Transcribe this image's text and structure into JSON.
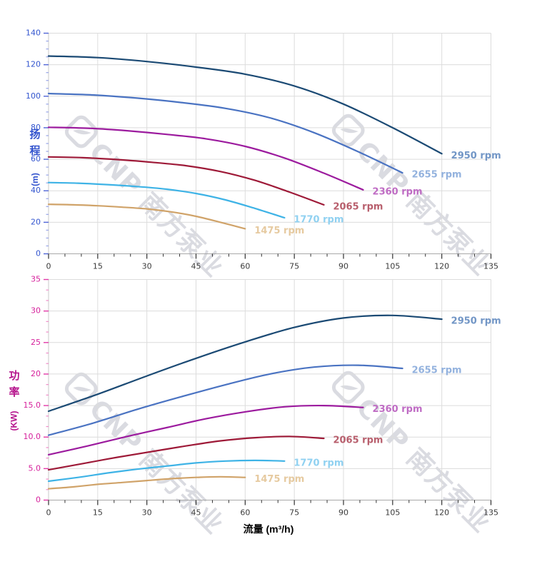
{
  "watermark": {
    "text": "CNP 南方泵业"
  },
  "axis_titles": {
    "head": {
      "chars": [
        "扬",
        "程"
      ],
      "unit": "(m)"
    },
    "power": {
      "chars": [
        "功",
        "率"
      ],
      "unit": "(KW)"
    },
    "x": "流量 (m³/h)"
  },
  "x_axis": {
    "min": 0,
    "max": 135,
    "major_step": 15,
    "minor_step": 5,
    "tick_labels": [
      "0",
      "15",
      "30",
      "45",
      "60",
      "75",
      "90",
      "105",
      "120",
      "135"
    ],
    "tick_color": "#2f2f2f",
    "text_color": "#3a3a3a"
  },
  "colors": {
    "grid": "#dcdcdc",
    "y_axis_line": "#c9c9c9",
    "x_axis_line": "#a8a8a8"
  },
  "chart_data": [
    {
      "type": "line",
      "title": "",
      "ylabel": "扬程 (m)",
      "xlabel": "流量 (m³/h)",
      "xlim": [
        0,
        135
      ],
      "ylim": [
        0,
        140
      ],
      "grid": true,
      "legend_position": "end-of-line-labels",
      "y_axis": {
        "min": 0,
        "max": 140,
        "major_step": 20,
        "minor_step": 5,
        "tick_labels": [
          "0",
          "20",
          "40",
          "60",
          "80",
          "100",
          "120",
          "140"
        ],
        "text_color": "#3355cf",
        "tick_color": "#5166d6",
        "minor_tick_color": "#98a5e8"
      },
      "series": [
        {
          "name": "2950 rpm",
          "color": "#1b4a74",
          "label_color": "#7296c6",
          "points": [
            [
              0,
              125.5
            ],
            [
              15,
              124.5
            ],
            [
              30,
              122
            ],
            [
              45,
              118.5
            ],
            [
              60,
              114
            ],
            [
              75,
              106.5
            ],
            [
              90,
              95
            ],
            [
              105,
              80
            ],
            [
              120,
              63.5
            ]
          ]
        },
        {
          "name": "2655 rpm",
          "color": "#4a73c2",
          "label_color": "#93b2de",
          "points": [
            [
              0,
              101.7
            ],
            [
              13.5,
              100.8
            ],
            [
              27,
              98.8
            ],
            [
              40.5,
              96
            ],
            [
              54,
              92.3
            ],
            [
              67.5,
              86.3
            ],
            [
              81,
              76.9
            ],
            [
              94.5,
              64.8
            ],
            [
              108,
              51.4
            ]
          ]
        },
        {
          "name": "2360 rpm",
          "color": "#9c1b9e",
          "label_color": "#bf6cc4",
          "points": [
            [
              0,
              80.3
            ],
            [
              12,
              79.7
            ],
            [
              24,
              78.1
            ],
            [
              36,
              75.8
            ],
            [
              48,
              73
            ],
            [
              60,
              68.2
            ],
            [
              72,
              60.8
            ],
            [
              84,
              51.2
            ],
            [
              96,
              40.6
            ]
          ]
        },
        {
          "name": "2065 rpm",
          "color": "#9e1a38",
          "label_color": "#b85f6d",
          "points": [
            [
              0,
              61.5
            ],
            [
              10.5,
              61
            ],
            [
              21,
              59.8
            ],
            [
              31.5,
              58.1
            ],
            [
              42,
              55.9
            ],
            [
              52.5,
              52.2
            ],
            [
              63,
              46.6
            ],
            [
              73.5,
              39.2
            ],
            [
              84,
              31.1
            ]
          ]
        },
        {
          "name": "1770 rpm",
          "color": "#3eb3e6",
          "label_color": "#90d1f1",
          "points": [
            [
              0,
              45.2
            ],
            [
              9,
              44.8
            ],
            [
              18,
              43.9
            ],
            [
              27,
              42.7
            ],
            [
              36,
              41
            ],
            [
              45,
              38.3
            ],
            [
              54,
              34.2
            ],
            [
              63,
              28.8
            ],
            [
              72,
              22.9
            ]
          ]
        },
        {
          "name": "1475 rpm",
          "color": "#d0a369",
          "label_color": "#e6caa0",
          "points": [
            [
              0,
              31.4
            ],
            [
              7.5,
              31.1
            ],
            [
              15,
              30.5
            ],
            [
              22.5,
              29.6
            ],
            [
              30,
              28.5
            ],
            [
              37.5,
              26.6
            ],
            [
              45,
              23.8
            ],
            [
              52.5,
              20
            ],
            [
              60,
              15.9
            ]
          ]
        }
      ]
    },
    {
      "type": "line",
      "title": "",
      "ylabel": "功率 (KW)",
      "xlabel": "流量 (m³/h)",
      "xlim": [
        0,
        135
      ],
      "ylim": [
        0,
        35
      ],
      "grid": true,
      "legend_position": "end-of-line-labels",
      "y_axis": {
        "min": 0,
        "max": 35,
        "major_step": 5,
        "minor_step": 1.6667,
        "tick_labels": [
          "0",
          "5.0",
          "10.0",
          "15.0",
          "20",
          "25",
          "30",
          "35"
        ],
        "text_color": "#d6219c",
        "tick_color": "#e23aa8",
        "minor_tick_color": "#f08cc9"
      },
      "series": [
        {
          "name": "2950 rpm",
          "color": "#1b4a74",
          "label_color": "#7296c6",
          "points": [
            [
              0,
              14.1
            ],
            [
              15,
              16.8
            ],
            [
              30,
              19.7
            ],
            [
              45,
              22.5
            ],
            [
              60,
              25.1
            ],
            [
              75,
              27.4
            ],
            [
              90,
              28.9
            ],
            [
              105,
              29.3
            ],
            [
              120,
              28.7
            ]
          ]
        },
        {
          "name": "2655 rpm",
          "color": "#4a73c2",
          "label_color": "#93b2de",
          "points": [
            [
              0,
              10.3
            ],
            [
              13.5,
              12.2
            ],
            [
              27,
              14.4
            ],
            [
              40.5,
              16.4
            ],
            [
              54,
              18.3
            ],
            [
              67.5,
              20
            ],
            [
              81,
              21.1
            ],
            [
              94.5,
              21.4
            ],
            [
              108,
              20.9
            ]
          ]
        },
        {
          "name": "2360 rpm",
          "color": "#9c1b9e",
          "label_color": "#bf6cc4",
          "points": [
            [
              0,
              7.2
            ],
            [
              12,
              8.6
            ],
            [
              24,
              10.1
            ],
            [
              36,
              11.5
            ],
            [
              48,
              12.9
            ],
            [
              60,
              14
            ],
            [
              72,
              14.8
            ],
            [
              84,
              15
            ],
            [
              96,
              14.7
            ]
          ]
        },
        {
          "name": "2065 rpm",
          "color": "#9e1a38",
          "label_color": "#b85f6d",
          "points": [
            [
              0,
              4.8
            ],
            [
              10.5,
              5.8
            ],
            [
              21,
              6.8
            ],
            [
              31.5,
              7.7
            ],
            [
              42,
              8.6
            ],
            [
              52.5,
              9.4
            ],
            [
              63,
              9.9
            ],
            [
              73.5,
              10.1
            ],
            [
              84,
              9.8
            ]
          ]
        },
        {
          "name": "1770 rpm",
          "color": "#3eb3e6",
          "label_color": "#90d1f1",
          "points": [
            [
              0,
              3
            ],
            [
              9,
              3.6
            ],
            [
              18,
              4.3
            ],
            [
              27,
              4.9
            ],
            [
              36,
              5.4
            ],
            [
              45,
              5.9
            ],
            [
              54,
              6.2
            ],
            [
              63,
              6.3
            ],
            [
              72,
              6.2
            ]
          ]
        },
        {
          "name": "1475 rpm",
          "color": "#d0a369",
          "label_color": "#e6caa0",
          "points": [
            [
              0,
              1.8
            ],
            [
              7.5,
              2.1
            ],
            [
              15,
              2.5
            ],
            [
              22.5,
              2.8
            ],
            [
              30,
              3.1
            ],
            [
              37.5,
              3.4
            ],
            [
              45,
              3.6
            ],
            [
              52.5,
              3.7
            ],
            [
              60,
              3.6
            ]
          ]
        }
      ]
    }
  ]
}
